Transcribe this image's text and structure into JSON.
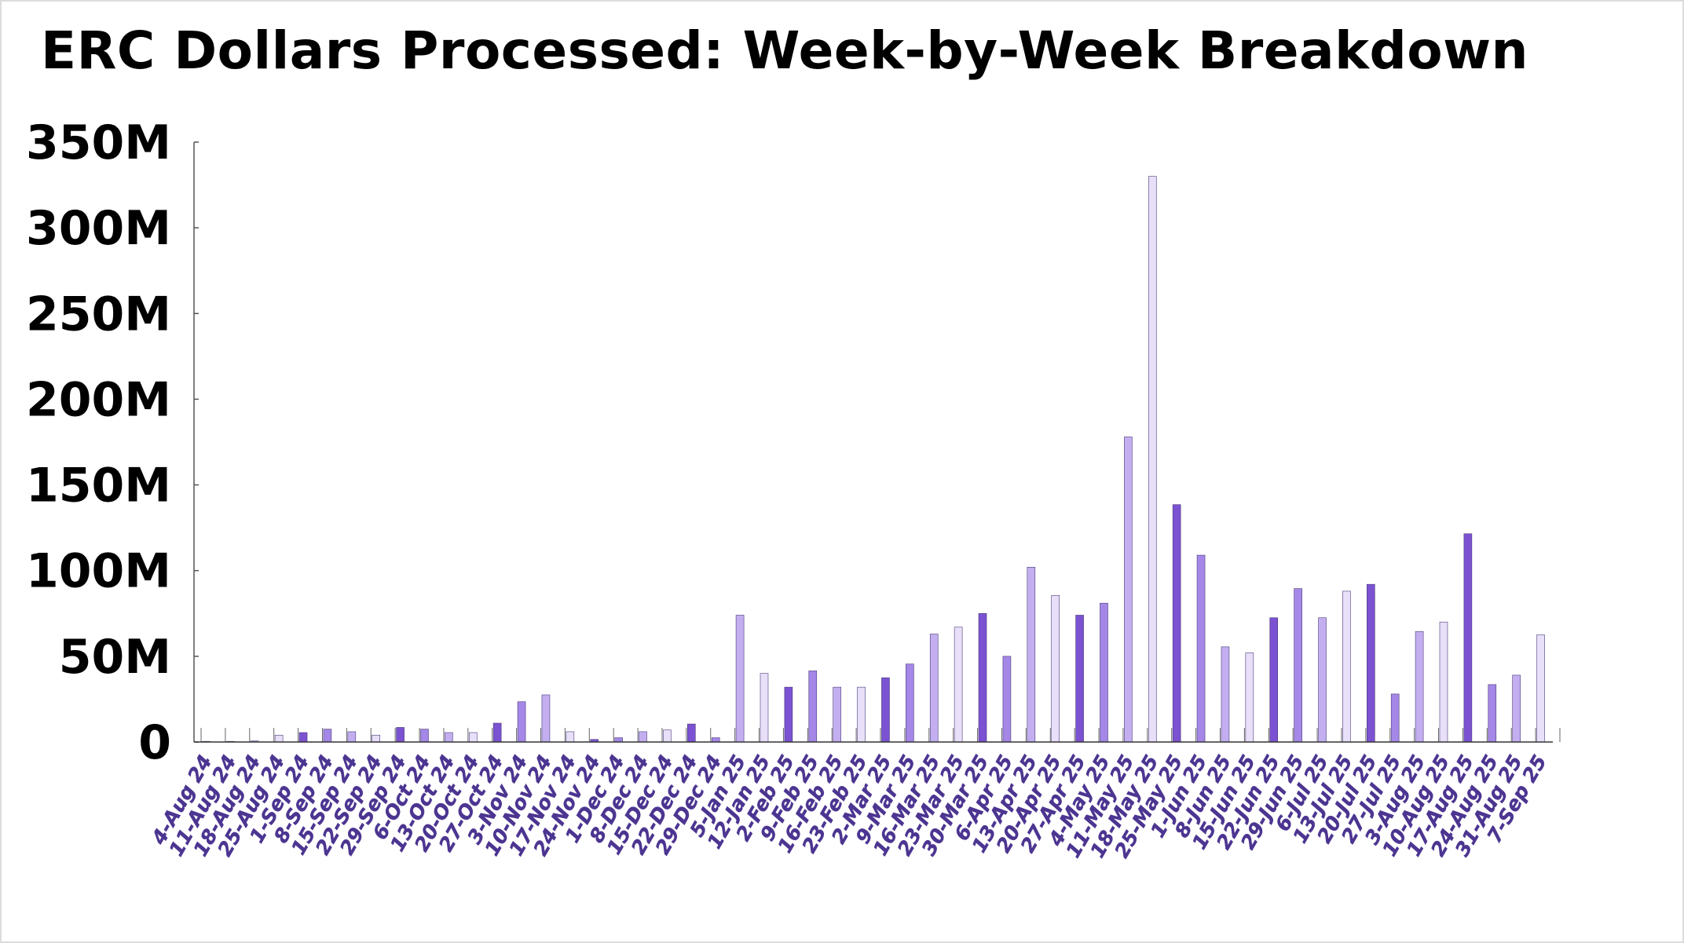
{
  "chart_data": {
    "type": "bar",
    "title": "ERC Dollars Processed: Week-by-Week Breakdown",
    "xlabel": "",
    "ylabel": "",
    "ylim": [
      0,
      350000000
    ],
    "yticks": [
      0,
      50000000,
      100000000,
      150000000,
      200000000,
      250000000,
      300000000,
      350000000
    ],
    "ytick_labels": [
      "0",
      "50M",
      "100M",
      "150M",
      "200M",
      "250M",
      "300M",
      "350M"
    ],
    "grid": false,
    "legend": "none",
    "categories": [
      "4-Aug 24",
      "11-Aug 24",
      "18-Aug 24",
      "25-Aug 24",
      "1-Sep 24",
      "8-Sep 24",
      "15-Sep 24",
      "22-Sep 24",
      "29-Sep 24",
      "6-Oct 24",
      "13-Oct 24",
      "20-Oct 24",
      "27-Oct 24",
      "3-Nov 24",
      "10-Nov 24",
      "17-Nov 24",
      "24-Nov 24",
      "1-Dec 24",
      "8-Dec 24",
      "15-Dec 24",
      "22-Dec 24",
      "29-Dec 24",
      "5-Jan 25",
      "12-Jan 25",
      "2-Feb 25",
      "9-Feb 25",
      "16-Feb 25",
      "23-Feb 25",
      "2-Mar 25",
      "9-Mar 25",
      "16-Mar 25",
      "23-Mar 25",
      "30-Mar 25",
      "6-Apr 25",
      "13-Apr 25",
      "20-Apr 25",
      "27-Apr 25",
      "4-May 25",
      "11-May 25",
      "18-May 25",
      "25-May 25",
      "1-Jun 25",
      "8-Jun 25",
      "15-Jun 25",
      "22-Jun 25",
      "29-Jun 25",
      "6-Jul 25",
      "13-Jul 25",
      "20-Jul 25",
      "27-Jul 25",
      "3-Aug 25",
      "10-Aug 25",
      "17-Aug 25",
      "24-Aug 25",
      "31-Aug 25",
      "7-Sep 25"
    ],
    "values": [
      100000,
      300000,
      600000,
      4000000,
      5500000,
      7500000,
      6000000,
      4000000,
      8500000,
      7500000,
      5500000,
      5500000,
      11000000,
      23500000,
      27500000,
      6000000,
      1500000,
      2500000,
      6000000,
      7000000,
      10500000,
      2500000,
      74000000,
      40000000,
      32000000,
      41500000,
      32000000,
      32000000,
      37500000,
      45500000,
      63000000,
      67000000,
      75000000,
      50000000,
      102000000,
      85500000,
      74000000,
      81000000,
      178000000,
      330000000,
      138500000,
      109000000,
      55500000,
      52000000,
      72500000,
      89500000,
      72500000,
      88000000,
      92000000,
      28000000,
      64500000,
      70000000,
      121500000,
      33500000,
      39000000,
      62500000
    ],
    "bar_colors": [
      "#7b52d1",
      "#a487e6",
      "#c3aff0",
      "#e8dff8"
    ]
  }
}
